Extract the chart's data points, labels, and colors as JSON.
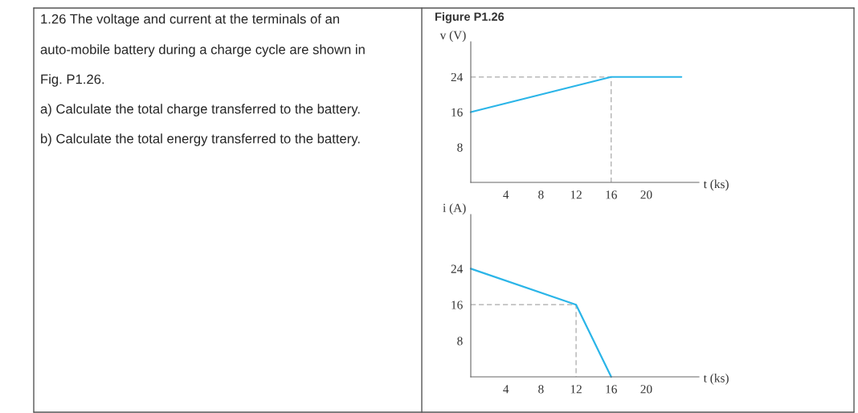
{
  "chart_data": [
    {
      "type": "other",
      "annotations": [
        "1.26 The voltage and current at the terminals of an",
        "auto-mobile battery during a charge cycle are shown in",
        "Fig. P1.26.",
        "a) Calculate the total charge transferred to the battery.",
        "b) Calculate the total energy transferred to the battery."
      ]
    },
    {
      "type": "line",
      "title": "Figure P1.26",
      "ylabel": "v (V)",
      "xlabel": "t (ks)",
      "xlim": [
        0,
        26
      ],
      "ylim": [
        0,
        32
      ],
      "xticks": [
        4,
        8,
        12,
        16,
        20
      ],
      "yticks": [
        8,
        16,
        24
      ],
      "series": [
        {
          "type": "line",
          "color": "#aaaaaa",
          "line_style": "dashed",
          "x": [
            0,
            16,
            16
          ],
          "values": [
            24,
            24,
            0
          ]
        },
        {
          "type": "line",
          "color": "#2bb5e8",
          "line_style": "solid",
          "x": [
            0,
            16,
            24
          ],
          "values": [
            16,
            24,
            24
          ]
        }
      ]
    },
    {
      "type": "line",
      "ylabel": "i (A)",
      "xlabel": "t (ks)",
      "xlim": [
        0,
        26
      ],
      "ylim": [
        0,
        36
      ],
      "xticks": [
        4,
        8,
        12,
        16,
        20
      ],
      "yticks": [
        8,
        16,
        24
      ],
      "series": [
        {
          "type": "line",
          "color": "#aaaaaa",
          "line_style": "dashed",
          "x": [
            0,
            12,
            12
          ],
          "values": [
            16,
            16,
            0
          ]
        },
        {
          "type": "line",
          "color": "#2bb5e8",
          "line_style": "solid",
          "x": [
            0,
            12,
            16
          ],
          "values": [
            24,
            16,
            0
          ]
        }
      ]
    }
  ]
}
